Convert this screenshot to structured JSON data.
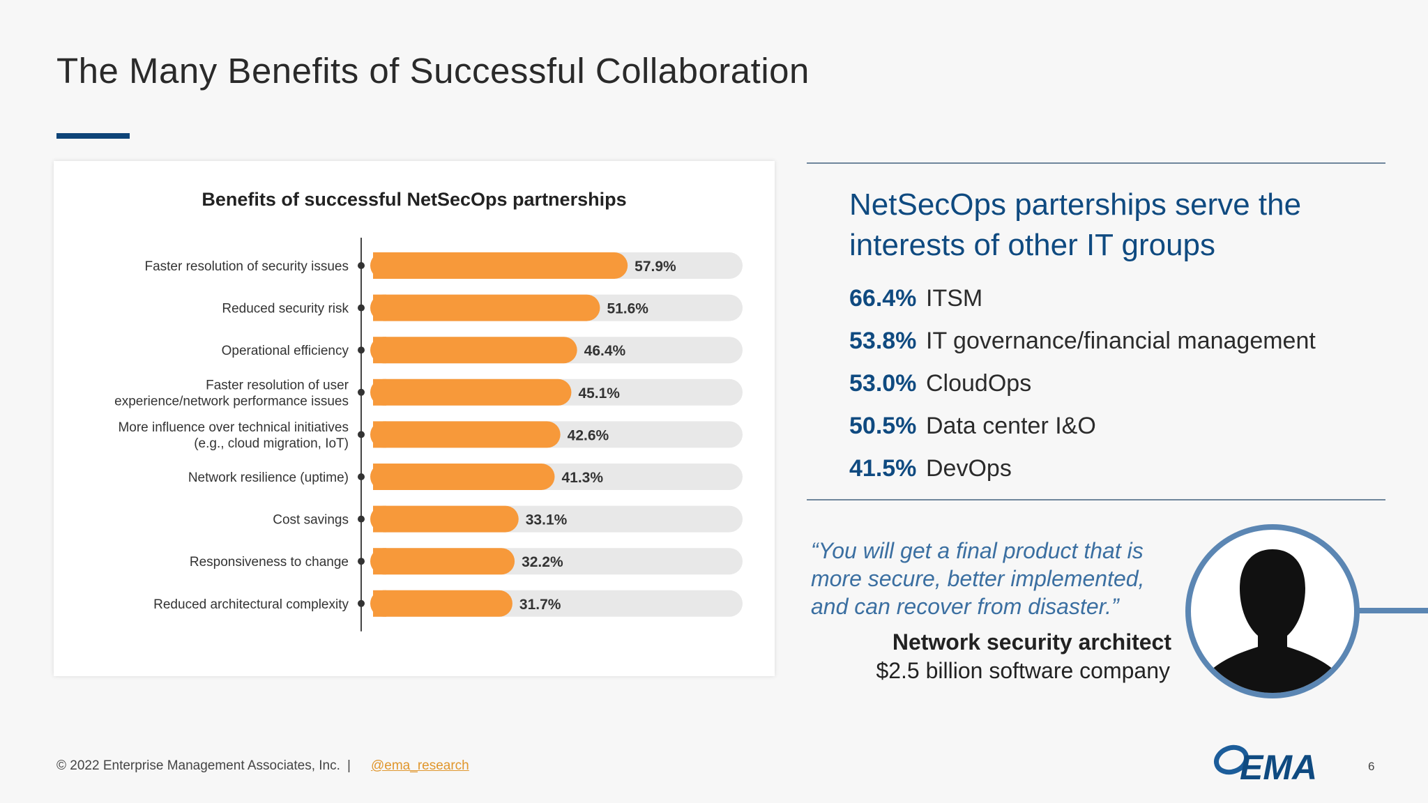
{
  "slide": {
    "title": "The Many Benefits of Successful Collaboration"
  },
  "chart_data": {
    "type": "bar",
    "orientation": "horizontal",
    "title": "Benefits of successful NetSecOps partnerships",
    "categories": [
      "Faster resolution of security issues",
      "Reduced security risk",
      "Operational efficiency",
      "Faster resolution of user experience/network performance issues",
      "More influence over technical initiatives (e.g., cloud migration, IoT)",
      "Network resilience (uptime)",
      "Cost savings",
      "Responsiveness to change",
      "Reduced architectural complexity"
    ],
    "category_lines": [
      [
        "Faster resolution of security issues"
      ],
      [
        "Reduced security risk"
      ],
      [
        "Operational efficiency"
      ],
      [
        "Faster resolution of user",
        "experience/network performance issues"
      ],
      [
        "More influence over technical initiatives",
        "(e.g., cloud migration, IoT)"
      ],
      [
        "Network resilience (uptime)"
      ],
      [
        "Cost savings"
      ],
      [
        "Responsiveness to change"
      ],
      [
        "Reduced architectural complexity"
      ]
    ],
    "values": [
      57.9,
      51.6,
      46.4,
      45.1,
      42.6,
      41.3,
      33.1,
      32.2,
      31.7
    ],
    "value_labels": [
      "57.9%",
      "51.6%",
      "46.4%",
      "45.1%",
      "42.6%",
      "41.3%",
      "33.1%",
      "32.2%",
      "31.7%"
    ],
    "xlim": [
      0,
      100
    ],
    "bar_color": "#f7993a",
    "track_color": "#e8e8e8",
    "grid": false,
    "legend": "none"
  },
  "panel": {
    "heading": "NetSecOps parterships serve the interests of other IT groups",
    "stats": [
      {
        "value": "66.4%",
        "label": "ITSM"
      },
      {
        "value": "53.8%",
        "label": "IT governance/financial management"
      },
      {
        "value": "53.0%",
        "label": "CloudOps"
      },
      {
        "value": "50.5%",
        "label": "Data center I&O"
      },
      {
        "value": "41.5%",
        "label": "DevOps"
      }
    ]
  },
  "quote": {
    "text": "“You will get a final product that is more secure, better implemented, and can recover from disaster.”",
    "author": "Network security architect",
    "organization": "$2.5 billion software company"
  },
  "footer": {
    "copyright": "© 2022 Enterprise Management Associates, Inc.",
    "separator": "|",
    "handle": "@ema_research",
    "logo_text": "EMA",
    "page_number": "6"
  },
  "colors": {
    "primary_blue": "#0f4a80",
    "accent_orange": "#f7993a",
    "link_orange": "#e0962c"
  }
}
